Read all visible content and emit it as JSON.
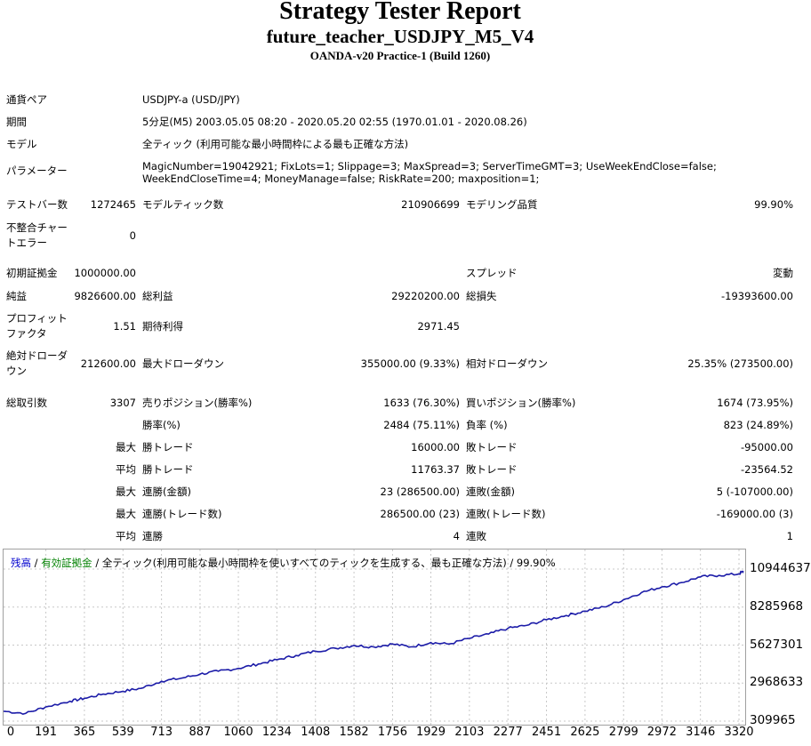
{
  "header": {
    "title": "Strategy Tester Report",
    "subtitle": "future_teacher_USDJPY_M5_V4",
    "server": "OANDA-v20 Practice-1 (Build 1260)"
  },
  "info": {
    "pair_label": "通貨ペア",
    "pair_value": "USDJPY-a (USD/JPY)",
    "period_label": "期間",
    "period_value": "5分足(M5) 2003.05.05 08:20 - 2020.05.20 02:55 (1970.01.01 - 2020.08.26)",
    "model_label": "モデル",
    "model_value": "全ティック (利用可能な最小時間枠による最も正確な方法)",
    "params_label": "パラメーター",
    "params_value": "MagicNumber=19042921; FixLots=1; Slippage=3; MaxSpread=3; ServerTimeGMT=3; UseWeekEndClose=false; WeekEndCloseTime=4; MoneyManage=false; RiskRate=200; maxposition=1;"
  },
  "stats": {
    "bars_label": "テストバー数",
    "bars_value": "1272465",
    "ticks_label": "モデルティック数",
    "ticks_value": "210906699",
    "quality_label": "モデリング品質",
    "quality_value": "99.90%",
    "mismatch_label": "不整合チャートエラー",
    "mismatch_value": "0",
    "deposit_label": "初期証拠金",
    "deposit_value": "1000000.00",
    "spread_label": "スプレッド",
    "spread_value": "変動",
    "net_label": "純益",
    "net_value": "9826600.00",
    "gross_profit_label": "総利益",
    "gross_profit_value": "29220200.00",
    "gross_loss_label": "総損失",
    "gross_loss_value": "-19393600.00",
    "pf_label": "プロフィットファクタ",
    "pf_value": "1.51",
    "expected_label": "期待利得",
    "expected_value": "2971.45",
    "abs_dd_label": "絶対ドローダウン",
    "abs_dd_value": "212600.00",
    "max_dd_label": "最大ドローダウン",
    "max_dd_value": "355000.00 (9.33%)",
    "rel_dd_label": "相対ドローダウン",
    "rel_dd_value": "25.35% (273500.00)",
    "trades_label": "総取引数",
    "trades_value": "3307",
    "short_label": "売りポジション(勝率%)",
    "short_value": "1633 (76.30%)",
    "long_label": "買いポジション(勝率%)",
    "long_value": "1674 (73.95%)",
    "winrate_label": "勝率(%)",
    "winrate_value": "2484 (75.11%)",
    "lossrate_label": "負率 (%)",
    "lossrate_value": "823 (24.89%)",
    "max_word": "最大",
    "avg_word": "平均",
    "max_win_label": "勝トレード",
    "max_win_value": "16000.00",
    "max_loss_label": "敗トレード",
    "max_loss_value": "-95000.00",
    "avg_win_label": "勝トレード",
    "avg_win_value": "11763.37",
    "avg_loss_label": "敗トレード",
    "avg_loss_value": "-23564.52",
    "max_consec_win_amt_label": "連勝(金額)",
    "max_consec_win_amt_value": "23 (286500.00)",
    "max_consec_loss_amt_label": "連敗(金額)",
    "max_consec_loss_amt_value": "5 (-107000.00)",
    "max_consec_win_trd_label": "連勝(トレード数)",
    "max_consec_win_trd_value": "286500.00 (23)",
    "max_consec_loss_trd_label": "連敗(トレード数)",
    "max_consec_loss_trd_value": "-169000.00 (3)",
    "avg_consec_win_label": "連勝",
    "avg_consec_win_value": "4",
    "avg_consec_loss_label": "連敗",
    "avg_consec_loss_value": "1"
  },
  "legend": {
    "balance": "残高",
    "sep1": " / ",
    "equity": "有効証拠金",
    "rest": " / 全ティック(利用可能な最小時間枠を使いすべてのティックを生成する、最も正確な方法) / 99.90%"
  },
  "colors": {
    "balance_line": "#1c1ca8",
    "balance_label": "#0000cd",
    "equity_label": "#008000",
    "grid": "#c8c8c8"
  },
  "chart_data": {
    "type": "line",
    "y_ticks": [
      "10944637",
      "8285968",
      "5627301",
      "2968633",
      "309965"
    ],
    "x_ticks": [
      "0",
      "191",
      "365",
      "539",
      "713",
      "887",
      "1060",
      "1234",
      "1408",
      "1582",
      "1756",
      "1929",
      "2103",
      "2277",
      "2451",
      "2625",
      "2799",
      "2972",
      "3146",
      "3320"
    ],
    "ylim": [
      309965,
      10944637
    ],
    "xlim": [
      0,
      3340
    ],
    "series": [
      {
        "name": "残高",
        "x": [
          0,
          100,
          190,
          300,
          365,
          450,
          539,
          620,
          713,
          800,
          887,
          970,
          1060,
          1150,
          1234,
          1320,
          1408,
          1500,
          1582,
          1670,
          1756,
          1840,
          1929,
          2010,
          2103,
          2190,
          2277,
          2360,
          2451,
          2540,
          2625,
          2710,
          2799,
          2880,
          2972,
          3060,
          3146,
          3230,
          3320,
          3340
        ],
        "y": [
          1000000,
          850000,
          1300000,
          1700000,
          1900000,
          2200000,
          2400000,
          2600000,
          3100000,
          3300000,
          3600000,
          3800000,
          4000000,
          4300000,
          4600000,
          4900000,
          5200000,
          5400000,
          5600000,
          5500000,
          5700000,
          5500000,
          5800000,
          5700000,
          6100000,
          6400000,
          6800000,
          7000000,
          7400000,
          7700000,
          8000000,
          8300000,
          8800000,
          9300000,
          9700000,
          10000000,
          10400000,
          10500000,
          10600000,
          10800000
        ]
      }
    ]
  }
}
